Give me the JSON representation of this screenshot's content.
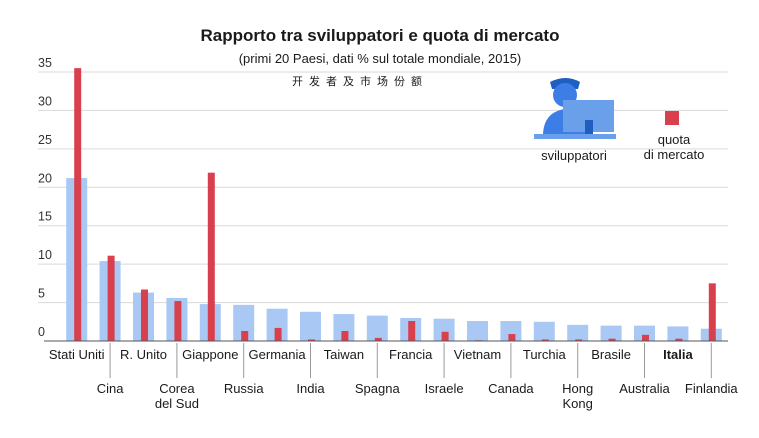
{
  "chart_data": {
    "type": "bar",
    "title": "Rapporto tra sviluppatori e quota di mercato",
    "subtitle": "(primi 20 Paesi, dati % sul totale mondiale, 2015)",
    "subtitle_secondary": "开发者及市场份额",
    "ylim": [
      0,
      35
    ],
    "yticks": [
      0,
      5,
      10,
      15,
      20,
      25,
      30,
      35
    ],
    "grid": true,
    "legend_position": "top-right",
    "categories": [
      "Stati Uniti",
      "Cina",
      "R. Unito",
      "Corea del Sud",
      "Giappone",
      "Russia",
      "Germania",
      "India",
      "Taiwan",
      "Spagna",
      "Francia",
      "Israele",
      "Vietnam",
      "Canada",
      "Turchia",
      "Hong Kong",
      "Brasile",
      "Australia",
      "Italia",
      "Finlandia"
    ],
    "category_labels": [
      [
        "Stati Uniti"
      ],
      [
        "Cina"
      ],
      [
        "R. Unito"
      ],
      [
        "Corea",
        "del Sud"
      ],
      [
        "Giappone"
      ],
      [
        "Russia"
      ],
      [
        "Germania"
      ],
      [
        "India"
      ],
      [
        "Taiwan"
      ],
      [
        "Spagna"
      ],
      [
        "Francia"
      ],
      [
        "Israele"
      ],
      [
        "Vietnam"
      ],
      [
        "Canada"
      ],
      [
        "Turchia"
      ],
      [
        "Hong",
        "Kong"
      ],
      [
        "Brasile"
      ],
      [
        "Australia"
      ],
      [
        "Italia"
      ],
      [
        "Finlandia"
      ]
    ],
    "bold_category": "Italia",
    "series": [
      {
        "name": "sviluppatori",
        "color": "#a9c8f3",
        "values": [
          21.2,
          10.4,
          6.3,
          5.6,
          4.8,
          4.7,
          4.2,
          3.8,
          3.5,
          3.3,
          3.0,
          2.9,
          2.6,
          2.6,
          2.5,
          2.1,
          2.0,
          2.0,
          1.9,
          1.6
        ]
      },
      {
        "name": "quota di mercato",
        "color": "#d9404e",
        "values": [
          35.5,
          11.1,
          6.7,
          5.2,
          21.9,
          1.3,
          1.7,
          0.2,
          1.3,
          0.4,
          2.6,
          1.2,
          0.1,
          0.9,
          0.2,
          0.2,
          0.3,
          0.8,
          0.3,
          7.5
        ]
      }
    ]
  },
  "legend": {
    "developers_label": "sviluppatori",
    "market_share_label_line1": "quota",
    "market_share_label_line2": "di mercato",
    "developer_icon": "developer-at-computer-icon",
    "market_share_swatch_color": "#d9404e"
  },
  "colors": {
    "grid": "#d9d9d9",
    "axis": "#555555"
  }
}
